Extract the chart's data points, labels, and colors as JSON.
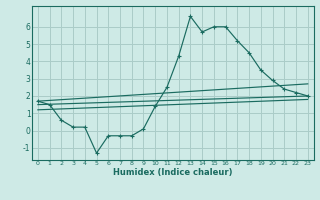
{
  "xlabel": "Humidex (Indice chaleur)",
  "background_color": "#ceeae6",
  "grid_color": "#aaccc8",
  "line_color": "#1a6b60",
  "xlim": [
    -0.5,
    23.5
  ],
  "ylim": [
    -1.7,
    7.2
  ],
  "yticks": [
    -1,
    0,
    1,
    2,
    3,
    4,
    5,
    6
  ],
  "xticks": [
    0,
    1,
    2,
    3,
    4,
    5,
    6,
    7,
    8,
    9,
    10,
    11,
    12,
    13,
    14,
    15,
    16,
    17,
    18,
    19,
    20,
    21,
    22,
    23
  ],
  "line1_x": [
    0,
    1,
    2,
    3,
    4,
    5,
    6,
    7,
    8,
    9,
    10,
    11,
    12,
    13,
    14,
    15,
    16,
    17,
    18,
    19,
    20,
    21,
    22,
    23
  ],
  "line1_y": [
    1.7,
    1.5,
    0.6,
    0.2,
    0.2,
    -1.3,
    -0.3,
    -0.3,
    -0.3,
    0.1,
    1.4,
    2.5,
    4.3,
    6.6,
    5.7,
    6.0,
    6.0,
    5.2,
    4.5,
    3.5,
    2.9,
    2.4,
    2.2,
    2.0
  ],
  "line2_x": [
    0,
    23
  ],
  "line2_y": [
    1.7,
    2.7
  ],
  "line3_x": [
    0,
    23
  ],
  "line3_y": [
    1.5,
    2.0
  ],
  "line4_x": [
    0,
    23
  ],
  "line4_y": [
    1.2,
    1.8
  ]
}
